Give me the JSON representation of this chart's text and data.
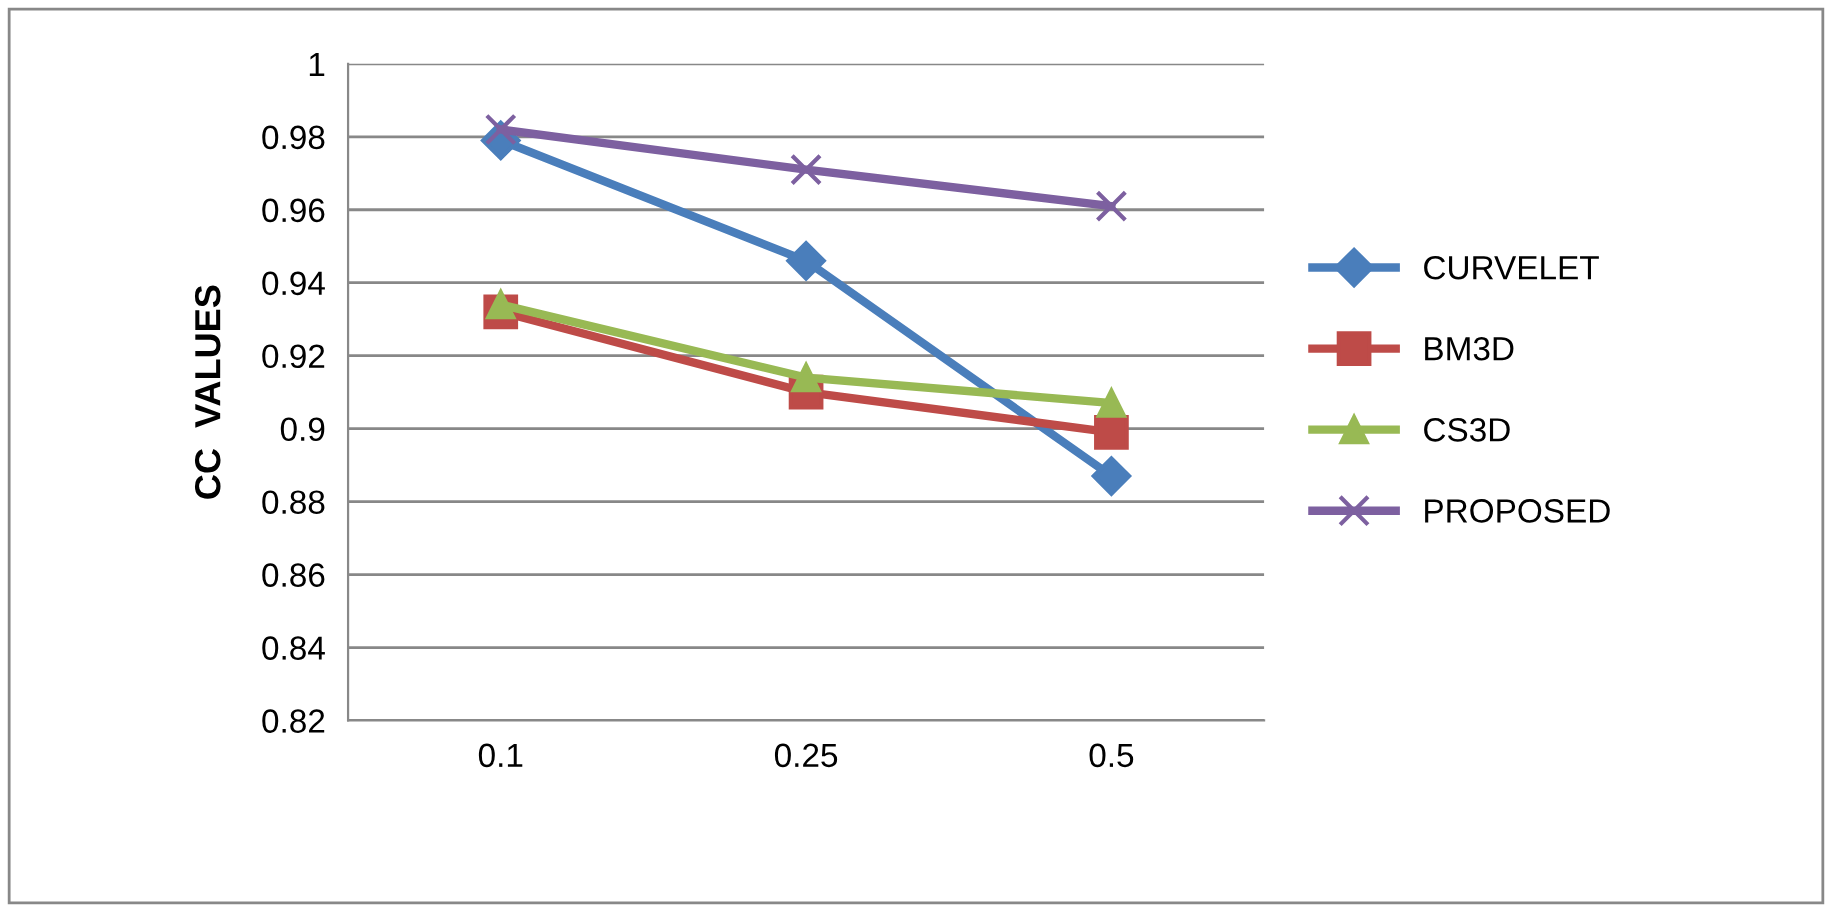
{
  "chart_data": {
    "type": "line",
    "ylabel": "CC  VALUES",
    "categories": [
      "0.1",
      "0.25",
      "0.5"
    ],
    "series": [
      {
        "name": "CURVELET",
        "color": "#4a7ebb",
        "values": [
          0.979,
          0.946,
          0.887
        ],
        "marker": "diamond"
      },
      {
        "name": "BM3D",
        "color": "#be4b48",
        "values": [
          0.932,
          0.91,
          0.899
        ],
        "marker": "square"
      },
      {
        "name": "CS3D",
        "color": "#98b954",
        "values": [
          0.934,
          0.914,
          0.907
        ],
        "marker": "triangle"
      },
      {
        "name": "PROPOSED",
        "color": "#7d60a0",
        "values": [
          0.982,
          0.971,
          0.961
        ],
        "marker": "cross"
      }
    ],
    "ylim": [
      0.82,
      1
    ],
    "yticks": [
      0.82,
      0.84,
      0.86,
      0.88,
      0.9,
      0.92,
      0.94,
      0.96,
      0.98,
      1
    ],
    "grid": "y",
    "legend": "right",
    "line_style": "solid"
  }
}
